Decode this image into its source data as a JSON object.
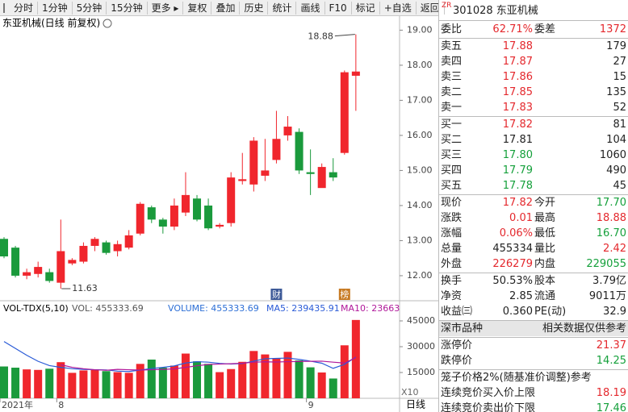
{
  "toolbar": [
    "分时",
    "1分钟",
    "5分钟",
    "15分钟",
    "更多 ▸",
    "复权",
    "叠加",
    "历史",
    "统计",
    "画线",
    "F10",
    "标记",
    "+自选",
    "返回"
  ],
  "chart_data": [
    {
      "type": "candlestick",
      "title": "东亚机械(日线 前复权)",
      "categories": [
        "2021年",
        null,
        null,
        null,
        null,
        "8",
        null,
        null,
        null,
        null,
        null,
        null,
        null,
        null,
        null,
        null,
        null,
        null,
        null,
        null,
        null,
        null,
        null,
        null,
        null,
        null,
        null,
        "9",
        null,
        null,
        null,
        null
      ],
      "open": [
        13.05,
        12.8,
        12.0,
        12.05,
        12.1,
        11.8,
        12.35,
        12.4,
        12.85,
        12.95,
        12.7,
        12.8,
        13.2,
        13.95,
        13.6,
        13.4,
        13.8,
        14.2,
        14.0,
        13.4,
        13.5,
        14.7,
        14.6,
        14.85,
        15.3,
        16.0,
        16.1,
        14.95,
        14.5,
        14.95,
        15.5,
        17.7
      ],
      "high": [
        13.1,
        12.85,
        12.2,
        12.4,
        12.2,
        13.6,
        12.5,
        12.95,
        13.1,
        13.0,
        13.0,
        13.3,
        14.1,
        14.0,
        13.65,
        14.2,
        14.95,
        14.3,
        14.2,
        13.5,
        14.95,
        15.5,
        15.95,
        15.9,
        16.7,
        16.55,
        16.2,
        15.6,
        15.2,
        15.35,
        17.85,
        18.88
      ],
      "low": [
        12.5,
        11.95,
        11.9,
        11.95,
        11.8,
        11.63,
        12.3,
        12.35,
        12.7,
        12.6,
        12.55,
        12.75,
        13.15,
        13.5,
        13.2,
        13.3,
        13.7,
        13.55,
        13.3,
        13.35,
        13.4,
        14.6,
        14.4,
        14.7,
        15.2,
        15.85,
        14.9,
        14.3,
        14.55,
        14.7,
        15.45,
        16.7
      ],
      "close": [
        12.55,
        12.0,
        12.1,
        12.25,
        11.85,
        12.7,
        12.45,
        12.85,
        13.05,
        12.65,
        12.9,
        13.15,
        14.05,
        13.6,
        13.4,
        14.0,
        14.3,
        13.6,
        13.35,
        13.45,
        14.8,
        14.75,
        15.85,
        15.0,
        15.9,
        16.25,
        15.0,
        14.9,
        15.1,
        14.8,
        17.8,
        17.82
      ],
      "up_color": "#f0262d",
      "down_color": "#1a9a3c",
      "ylim": [
        11.7,
        19.4
      ],
      "yticks": [
        {
          "value": 19,
          "label": "19.00"
        },
        {
          "value": 18,
          "label": "18.00"
        },
        {
          "value": 17,
          "label": "17.00"
        },
        {
          "value": 16,
          "label": "16.00"
        },
        {
          "value": 15,
          "label": "15.00"
        },
        {
          "value": 14,
          "label": "14.00"
        },
        {
          "value": 13,
          "label": "13.00"
        },
        {
          "value": 12,
          "label": "12.00"
        }
      ],
      "annotations": [
        {
          "value": 18.88,
          "label": "18.88"
        },
        {
          "value": 11.63,
          "label": "11.63"
        }
      ],
      "event_markers": [
        {
          "label": "财",
          "index": 24,
          "color": "#3d5a98"
        },
        {
          "label": "榜",
          "index": 30,
          "color": "#c77a22"
        }
      ]
    },
    {
      "type": "bar",
      "title": "VOL-TDX(5,10)",
      "subtitle": "VOL: 455333.69",
      "values": [
        18500,
        17800,
        16800,
        16500,
        17200,
        21000,
        14800,
        16200,
        16800,
        15800,
        15200,
        14800,
        20000,
        22500,
        17800,
        19000,
        26000,
        21500,
        20000,
        15200,
        17000,
        21200,
        27500,
        25500,
        23000,
        27000,
        22000,
        18000,
        15000,
        11500,
        30800,
        45533.369
      ],
      "values_name": "VOLUME: 455333.69",
      "values_name_color": "#2d6fd6",
      "series": [
        {
          "name": "MA5: 239435.91",
          "color": "#2a5bd7",
          "values": [
            33000,
            29000,
            25000,
            21500,
            19000,
            18000,
            17200,
            16800,
            16600,
            16500,
            15800,
            15600,
            16400,
            17300,
            18000,
            18800,
            20500,
            21300,
            21000,
            20300,
            19900,
            20200,
            21600,
            23000,
            23200,
            23400,
            22600,
            21600,
            20400,
            17400,
            19700,
            23943.591
          ]
        },
        {
          "name": "MA10: 23663",
          "color": "#b0189a",
          "values": [
            null,
            null,
            null,
            null,
            null,
            19500,
            18000,
            17200,
            16600,
            16300,
            16800,
            16600,
            16400,
            16600,
            16800,
            17100,
            18000,
            18900,
            19700,
            19900,
            20100,
            20400,
            21000,
            21200,
            21100,
            21300,
            21400,
            21500,
            21600,
            21000,
            20500,
            23663
          ]
        }
      ],
      "ylim": [
        0,
        46400
      ],
      "yticks": [
        45000,
        30000,
        15000
      ],
      "scale_note": "X10",
      "period": "日线"
    }
  ],
  "quote": {
    "tag": "ZR",
    "title": "301028 东亚机械",
    "palette": {
      "up": "#e4282d",
      "down": "#15a03b",
      "flat": "#222222"
    },
    "sections": [
      [
        {
          "cells": [
            "委比",
            "62.71%",
            "委差",
            "1372"
          ],
          "tones": [
            "flat",
            "up",
            "flat",
            "up"
          ]
        }
      ],
      [
        {
          "cells": [
            "卖五",
            "17.88",
            "179"
          ],
          "tones": [
            "flat",
            "up",
            "flat"
          ]
        },
        {
          "cells": [
            "卖四",
            "17.87",
            "27"
          ],
          "tones": [
            "flat",
            "up",
            "flat"
          ]
        },
        {
          "cells": [
            "卖三",
            "17.86",
            "15"
          ],
          "tones": [
            "flat",
            "up",
            "flat"
          ]
        },
        {
          "cells": [
            "卖二",
            "17.85",
            "135"
          ],
          "tones": [
            "flat",
            "up",
            "flat"
          ]
        },
        {
          "cells": [
            "卖一",
            "17.83",
            "52"
          ],
          "tones": [
            "flat",
            "up",
            "flat"
          ]
        }
      ],
      [
        {
          "cells": [
            "买一",
            "17.82",
            "81"
          ],
          "tones": [
            "flat",
            "up",
            "flat"
          ]
        },
        {
          "cells": [
            "买二",
            "17.81",
            "104"
          ],
          "tones": [
            "flat",
            "flat",
            "flat"
          ]
        },
        {
          "cells": [
            "买三",
            "17.80",
            "1060"
          ],
          "tones": [
            "flat",
            "down",
            "flat"
          ]
        },
        {
          "cells": [
            "买四",
            "17.79",
            "490"
          ],
          "tones": [
            "flat",
            "down",
            "flat"
          ]
        },
        {
          "cells": [
            "买五",
            "17.78",
            "45"
          ],
          "tones": [
            "flat",
            "down",
            "flat"
          ]
        }
      ],
      [
        {
          "cells": [
            "现价",
            "17.82",
            "今开",
            "17.70"
          ],
          "tones": [
            "flat",
            "up",
            "flat",
            "down"
          ]
        },
        {
          "cells": [
            "涨跌",
            "0.01",
            "最高",
            "18.88"
          ],
          "tones": [
            "flat",
            "up",
            "flat",
            "up"
          ]
        },
        {
          "cells": [
            "涨幅",
            "0.06%",
            "最低",
            "16.70"
          ],
          "tones": [
            "flat",
            "up",
            "flat",
            "down"
          ]
        },
        {
          "cells": [
            "总量",
            "455334",
            "量比",
            "2.42"
          ],
          "tones": [
            "flat",
            "flat",
            "flat",
            "up"
          ]
        },
        {
          "cells": [
            "外盘",
            "226279",
            "内盘",
            "229055"
          ],
          "tones": [
            "flat",
            "up",
            "flat",
            "down"
          ]
        }
      ],
      [
        {
          "cells": [
            "换手",
            "50.53%",
            "股本",
            "3.79亿"
          ],
          "tones": [
            "flat",
            "flat",
            "flat",
            "flat"
          ]
        },
        {
          "cells": [
            "净资",
            "2.85",
            "流通",
            "9011万"
          ],
          "tones": [
            "flat",
            "flat",
            "flat",
            "flat"
          ]
        },
        {
          "cells": [
            "收益㈢",
            "0.360",
            "PE(动)",
            "32.9"
          ],
          "tones": [
            "flat",
            "flat",
            "flat",
            "flat"
          ]
        }
      ],
      [
        {
          "cells": [
            "深市品种",
            "相关数据仅供参考"
          ],
          "tones": [
            "flat",
            "flat"
          ],
          "shaded": true
        }
      ],
      [
        {
          "cells": [
            "涨停价",
            "21.37"
          ],
          "tones": [
            "flat",
            "up"
          ]
        },
        {
          "cells": [
            "跌停价",
            "14.25"
          ],
          "tones": [
            "flat",
            "down"
          ]
        }
      ],
      [
        {
          "cells": [
            "笼子价格2%(随基准价调整)参考"
          ],
          "tones": [
            "flat"
          ]
        },
        {
          "cells": [
            "连续竞价买入价上限",
            "18.19"
          ],
          "tones": [
            "flat",
            "up"
          ]
        },
        {
          "cells": [
            "连续竞价卖出价下限",
            "17.46"
          ],
          "tones": [
            "flat",
            "down"
          ]
        }
      ]
    ]
  }
}
